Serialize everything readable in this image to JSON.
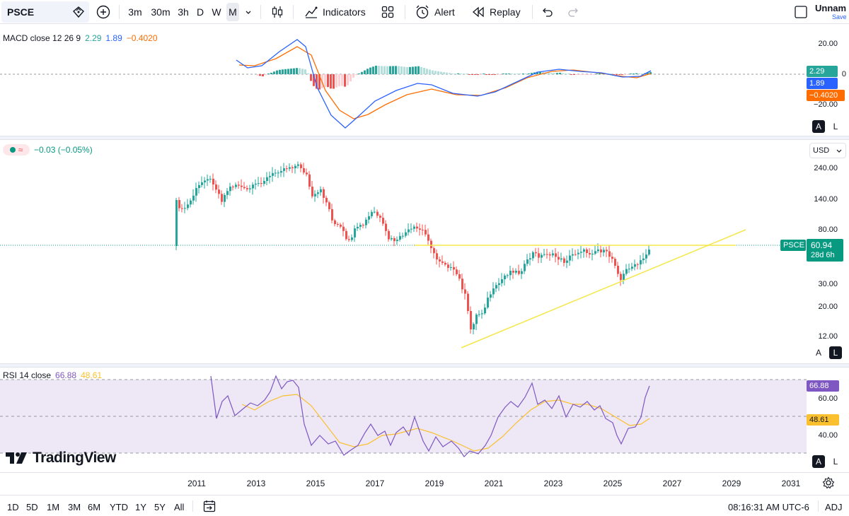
{
  "toolbar": {
    "symbol": "PSCE",
    "intervals": [
      "3m",
      "30m",
      "3h",
      "D",
      "W",
      "M"
    ],
    "active_interval": "M",
    "indicators_label": "Indicators",
    "alert_label": "Alert",
    "replay_label": "Replay",
    "layout_name": "Unnam",
    "save_label": "Save"
  },
  "macd": {
    "title": "MACD close 12 26 9",
    "hist_value": "2.29",
    "macd_value": "1.89",
    "signal_value": "−0.4020",
    "scale_labels": [
      "20.00",
      "0",
      "−20.00"
    ],
    "colors": {
      "macd": "#2962ff",
      "signal": "#ff6d00",
      "hist_pos": "#26a69a",
      "hist_neg": "#ef5350"
    }
  },
  "price": {
    "change_text": "−0.03 (−0.05%)",
    "currency": "USD",
    "scale_labels": [
      "240.00",
      "140.00",
      "80.00",
      "30.00",
      "20.00",
      "12.00"
    ],
    "last_price": "60.94",
    "countdown": "28d 6h",
    "symbol_tag": "PSCE",
    "colors": {
      "up": "#26a69a",
      "down": "#ef5350",
      "trendline": "#f5e74a"
    }
  },
  "rsi": {
    "title": "RSI 14 close",
    "rsi_value": "66.88",
    "ma_value": "48.61",
    "scale_labels": [
      "60.00",
      "40.00"
    ],
    "colors": {
      "rsi": "#7e57c2",
      "ma": "#fbc02d",
      "band": "#ede7f6"
    }
  },
  "brand": "TradingView",
  "time_axis": [
    "2011",
    "2013",
    "2015",
    "2017",
    "2019",
    "2021",
    "2023",
    "2025",
    "2027",
    "2029",
    "2031"
  ],
  "ranges": [
    "1D",
    "5D",
    "1M",
    "3M",
    "6M",
    "YTD",
    "1Y",
    "5Y",
    "All"
  ],
  "clock": "08:16:31 AM UTC-6",
  "adj_label": "ADJ",
  "scale_mode": {
    "auto": "A",
    "log": "L"
  }
}
